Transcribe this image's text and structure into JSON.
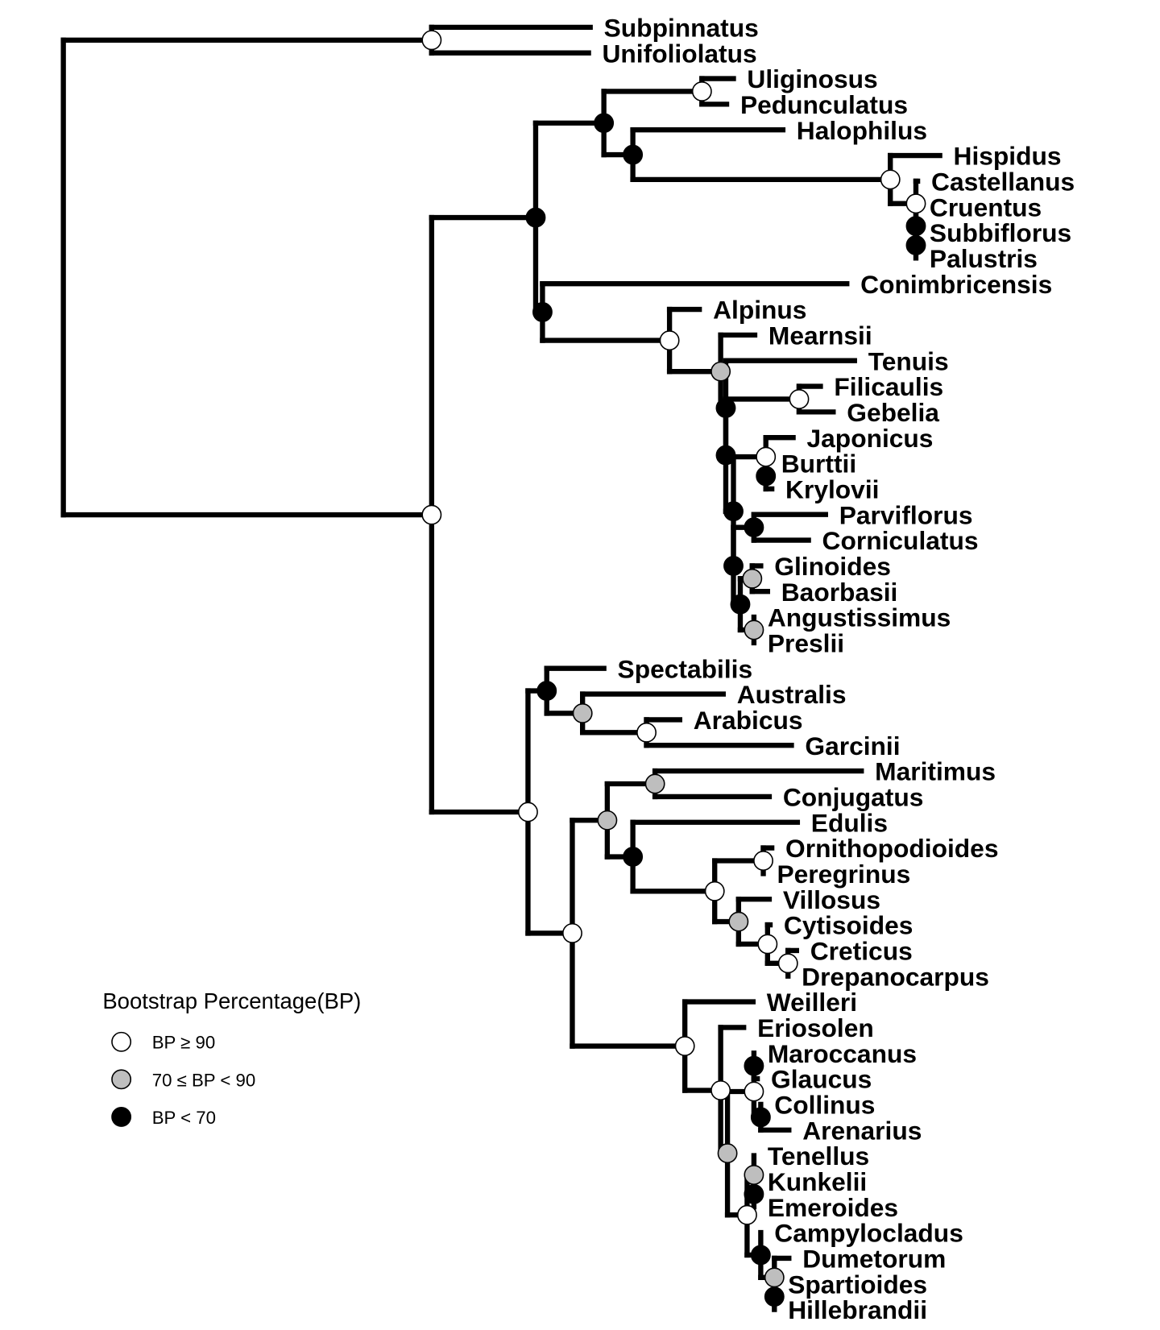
{
  "legend": {
    "title": "Bootstrap Percentage(BP)",
    "items": [
      {
        "level": "high",
        "label": "BP ≥ 90",
        "color": "#ffffff"
      },
      {
        "level": "mid",
        "label": "70 ≤ BP < 90",
        "color": "#bebebe"
      },
      {
        "level": "low",
        "label": "BP < 70",
        "color": "#000000"
      }
    ]
  },
  "tree": {
    "c": [
      {
        "s": "high",
        "c": [
          "Subpinnatus",
          "Unifoliolatus"
        ]
      },
      {
        "s": "high",
        "c": [
          {
            "s": "low",
            "c": [
              {
                "s": "low",
                "c": [
                  {
                    "s": "high",
                    "c": [
                      "Uliginosus",
                      "Pedunculatus"
                    ]
                  },
                  {
                    "s": "low",
                    "c": [
                      "Halophilus",
                      {
                        "s": "high",
                        "c": [
                          "Hispidus",
                          {
                            "s": "high",
                            "c": [
                              "Castellanus",
                              {
                                "s": "low",
                                "c": [
                                  "Cruentus",
                                  {
                                    "s": "low",
                                    "c": [
                                      "Subbiflorus",
                                      "Palustris"
                                    ]
                                  }
                                ]
                              }
                            ]
                          }
                        ]
                      }
                    ]
                  }
                ]
              },
              {
                "s": "low",
                "c": [
                  "Conimbricensis",
                  {
                    "s": "high",
                    "c": [
                      "Alpinus",
                      {
                        "s": "mid",
                        "c": [
                          "Mearnsii",
                          {
                            "s": "low",
                            "c": [
                              "Tenuis",
                              {
                                "s": "low",
                                "c": [
                                  {
                                    "s": "high",
                                    "c": [
                                      "Filicaulis",
                                      "Gebelia"
                                    ]
                                  },
                                  {
                                    "s": "low",
                                    "c": [
                                      {
                                        "s": "high",
                                        "c": [
                                          "Japonicus",
                                          {
                                            "s": "low",
                                            "c": [
                                              "Burttii",
                                              "Krylovii"
                                            ]
                                          }
                                        ]
                                      },
                                      {
                                        "s": "low",
                                        "c": [
                                          {
                                            "s": "low",
                                            "c": [
                                              "Parviflorus",
                                              "Corniculatus"
                                            ]
                                          },
                                          {
                                            "s": "low",
                                            "c": [
                                              {
                                                "s": "mid",
                                                "c": [
                                                  "Glinoides",
                                                  "Baorbasii"
                                                ]
                                              },
                                              {
                                                "s": "mid",
                                                "c": [
                                                  "Angustissimus",
                                                  "Preslii"
                                                ]
                                              }
                                            ]
                                          }
                                        ]
                                      }
                                    ]
                                  }
                                ]
                              }
                            ]
                          }
                        ]
                      }
                    ]
                  }
                ]
              }
            ]
          },
          {
            "s": "high",
            "c": [
              {
                "s": "low",
                "c": [
                  "Spectabilis",
                  {
                    "s": "mid",
                    "c": [
                      "Australis",
                      {
                        "s": "high",
                        "c": [
                          "Arabicus",
                          "Garcinii"
                        ]
                      }
                    ]
                  }
                ]
              },
              {
                "s": "high",
                "c": [
                  {
                    "s": "mid",
                    "c": [
                      {
                        "s": "mid",
                        "c": [
                          "Maritimus",
                          "Conjugatus"
                        ]
                      },
                      {
                        "s": "low",
                        "c": [
                          "Edulis",
                          {
                            "s": "high",
                            "c": [
                              {
                                "s": "high",
                                "c": [
                                  "Ornithopodioides",
                                  "Peregrinus"
                                ]
                              },
                              {
                                "s": "mid",
                                "c": [
                                  "Villosus",
                                  {
                                    "s": "high",
                                    "c": [
                                      "Cytisoides",
                                      {
                                        "s": "high",
                                        "c": [
                                          "Creticus",
                                          "Drepanocarpus"
                                        ]
                                      }
                                    ]
                                  }
                                ]
                              }
                            ]
                          }
                        ]
                      }
                    ]
                  },
                  {
                    "s": "high",
                    "c": [
                      "Weilleri",
                      {
                        "s": "high",
                        "c": [
                          "Eriosolen",
                          {
                            "s": "mid",
                            "c": [
                              {
                                "s": "high",
                                "c": [
                                  {
                                    "s": "low",
                                    "c": [
                                      "Maroccanus",
                                      "Glaucus"
                                    ]
                                  },
                                  {
                                    "s": "low",
                                    "c": [
                                      "Collinus",
                                      "Arenarius"
                                    ]
                                  }
                                ]
                              },
                              {
                                "s": "high",
                                "c": [
                                  {
                                    "s": "mid",
                                    "c": [
                                      "Tenellus",
                                      {
                                        "s": "low",
                                        "c": [
                                          "Kunkelii",
                                          "Emeroides"
                                        ]
                                      }
                                    ]
                                  },
                                  {
                                    "s": "low",
                                    "c": [
                                      "Campylocladus",
                                      {
                                        "s": "mid",
                                        "c": [
                                          "Dumetorum",
                                          {
                                            "s": "low",
                                            "c": [
                                              "Spartioides",
                                              "Hillebrandii"
                                            ]
                                          }
                                        ]
                                      }
                                    ]
                                  }
                                ]
                              }
                            ]
                          }
                        ]
                      }
                    ]
                  }
                ]
              }
            ]
          }
        ]
      }
    ]
  }
}
